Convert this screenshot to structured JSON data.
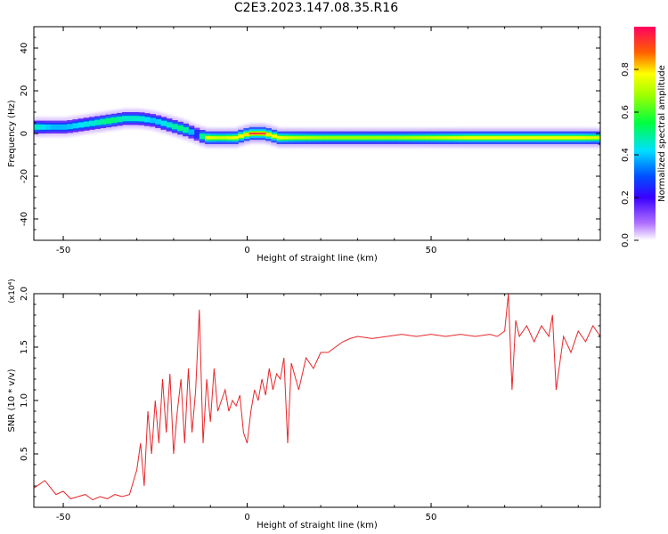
{
  "title": "C2E3.2023.147.08.35.R16",
  "chart_data": [
    {
      "type": "heatmap",
      "xlabel": "Height of straight line (km)",
      "ylabel": "Frequency (Hz)",
      "xlim": [
        -58,
        96
      ],
      "ylim": [
        -50,
        50
      ],
      "xticks": [
        -50,
        0,
        50
      ],
      "yticks": [
        -40,
        -20,
        0,
        20,
        40
      ],
      "colorbar": {
        "label": "Normalized spectral amplitude",
        "range": [
          0,
          1
        ],
        "ticks": [
          "0.0",
          "0.2",
          "0.4",
          "0.6",
          "0.8"
        ]
      },
      "ridge": {
        "x": [
          -58,
          -54,
          -50,
          -46,
          -42,
          -38,
          -34,
          -30,
          -26,
          -22,
          -18,
          -15,
          -12,
          -8,
          -4,
          0,
          4,
          8,
          12,
          20,
          30,
          40,
          50,
          60,
          70,
          80,
          90,
          96
        ],
        "freq": [
          3,
          3,
          3,
          4,
          5,
          6,
          7,
          7,
          6,
          4,
          2,
          0,
          -2,
          -2,
          -2,
          0,
          0,
          -2,
          -2,
          -2,
          -2,
          -2,
          -2,
          -2,
          -2,
          -2,
          -2,
          -2
        ],
        "amplitude": [
          0.7,
          0.6,
          0.6,
          0.65,
          0.7,
          0.8,
          0.7,
          0.7,
          0.6,
          0.7,
          0.8,
          0.5,
          0.9,
          0.85,
          0.9,
          0.95,
          0.95,
          0.9,
          0.85,
          0.8,
          0.8,
          0.8,
          0.85,
          0.9,
          0.9,
          0.9,
          0.9,
          0.85
        ]
      }
    },
    {
      "type": "line",
      "xlabel": "Height of straight line (km)",
      "ylabel": "SNR (10 * v/v)",
      "yscale_label": "(x10⁴)",
      "xlim": [
        -58,
        96
      ],
      "ylim": [
        0,
        2.0
      ],
      "xticks": [
        -50,
        0,
        50
      ],
      "yticks": [
        0.5,
        1.0,
        1.5,
        2.0
      ],
      "series": [
        {
          "color": "#e8262a",
          "x": [
            -58,
            -55,
            -52,
            -50,
            -48,
            -46,
            -44,
            -42,
            -40,
            -38,
            -36,
            -34,
            -32,
            -30,
            -29,
            -28,
            -27,
            -26,
            -25,
            -24,
            -23,
            -22,
            -21,
            -20,
            -19,
            -18,
            -17,
            -16,
            -15,
            -14,
            -13,
            -12,
            -11,
            -10,
            -9,
            -8,
            -7,
            -6,
            -5,
            -4,
            -3,
            -2,
            -1,
            0,
            1,
            2,
            3,
            4,
            5,
            6,
            7,
            8,
            9,
            10,
            11,
            12,
            14,
            16,
            18,
            20,
            22,
            24,
            26,
            28,
            30,
            34,
            38,
            42,
            46,
            50,
            54,
            58,
            62,
            66,
            68,
            70,
            71,
            72,
            73,
            74,
            76,
            78,
            80,
            82,
            83,
            84,
            86,
            88,
            90,
            92,
            94,
            96
          ],
          "y": [
            0.18,
            0.25,
            0.12,
            0.15,
            0.08,
            0.1,
            0.12,
            0.07,
            0.1,
            0.08,
            0.12,
            0.1,
            0.12,
            0.35,
            0.6,
            0.2,
            0.9,
            0.5,
            1.0,
            0.6,
            1.2,
            0.7,
            1.25,
            0.5,
            0.9,
            1.2,
            0.6,
            1.3,
            0.7,
            1.1,
            1.85,
            0.6,
            1.2,
            0.8,
            1.3,
            0.9,
            1.0,
            1.1,
            0.9,
            1.0,
            0.95,
            1.05,
            0.7,
            0.6,
            0.9,
            1.1,
            1.0,
            1.2,
            1.05,
            1.3,
            1.1,
            1.25,
            1.2,
            1.4,
            0.6,
            1.35,
            1.1,
            1.4,
            1.3,
            1.45,
            1.45,
            1.5,
            1.55,
            1.58,
            1.6,
            1.58,
            1.6,
            1.62,
            1.6,
            1.62,
            1.6,
            1.62,
            1.6,
            1.62,
            1.6,
            1.65,
            2.0,
            1.1,
            1.75,
            1.6,
            1.7,
            1.55,
            1.7,
            1.6,
            1.8,
            1.1,
            1.6,
            1.45,
            1.65,
            1.55,
            1.7,
            1.6
          ]
        }
      ]
    }
  ]
}
